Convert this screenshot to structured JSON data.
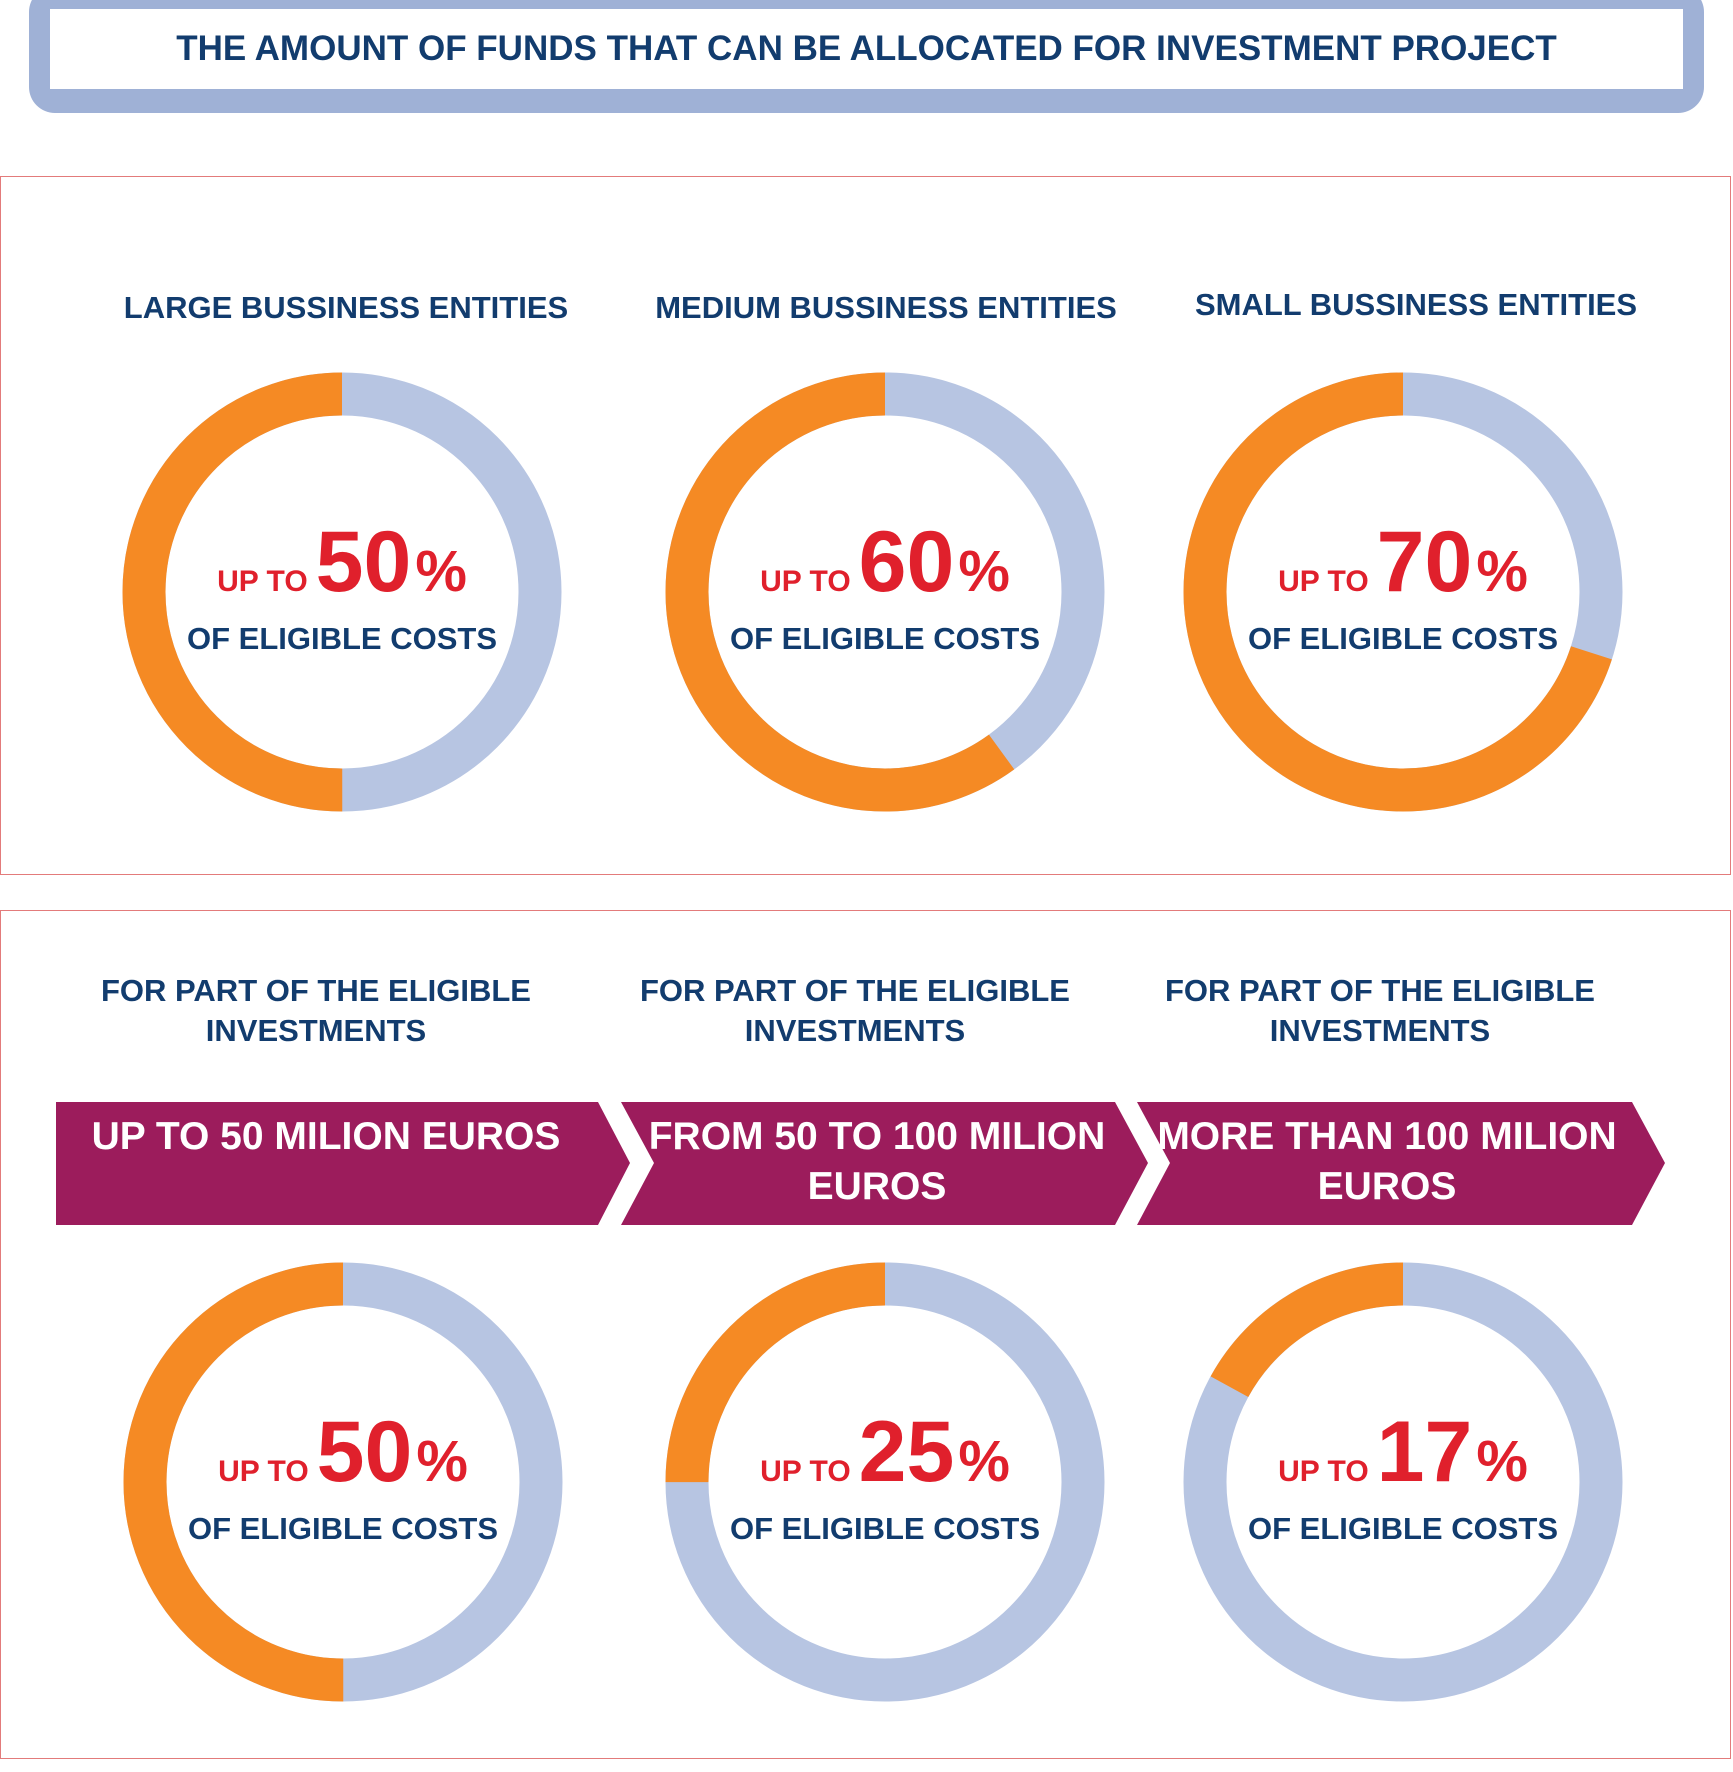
{
  "header": {
    "title": "THE AMOUNT OF FUNDS THAT CAN BE ALLOCATED FOR INVESTMENT PROJECT"
  },
  "colors": {
    "accent": "#f58a24",
    "remainder": "#b7c5e2",
    "navy": "#123c6e",
    "red": "#e0202c",
    "band": "#9c1c5c"
  },
  "chart_data": [
    {
      "type": "pie",
      "entities": [
        {
          "label": "LARGE BUSSINESS ENTITIES",
          "prefix": "UP TO",
          "value": 50,
          "number": "50",
          "unit": "%",
          "caption": "OF ELIGIBLE COSTS"
        },
        {
          "label": "MEDIUM BUSSINESS ENTITIES",
          "prefix": "UP TO",
          "value": 60,
          "number": "60",
          "unit": "%",
          "caption": "OF ELIGIBLE COSTS"
        },
        {
          "label": "SMALL BUSSINESS ENTITIES",
          "prefix": "UP TO",
          "value": 70,
          "number": "70",
          "unit": "%",
          "caption": "OF ELIGIBLE COSTS"
        }
      ]
    },
    {
      "type": "pie",
      "tiers": [
        {
          "label": "FOR PART OF THE ELIGIBLE INVESTMENTS",
          "band": "UP TO 50 MILION EUROS",
          "prefix": "UP TO",
          "value": 50,
          "number": "50",
          "unit": "%",
          "caption": "OF ELIGIBLE COSTS"
        },
        {
          "label": "FOR PART OF THE ELIGIBLE INVESTMENTS",
          "band": "FROM 50  TO 100 MILION EUROS",
          "prefix": "UP TO",
          "value": 25,
          "number": "25",
          "unit": "%",
          "caption": "OF ELIGIBLE COSTS"
        },
        {
          "label": "FOR PART OF THE ELIGIBLE INVESTMENTS",
          "band": "MORE THAN   100 MILION EUROS",
          "prefix": "UP TO",
          "value": 17,
          "number": "17",
          "unit": "%",
          "caption": "OF ELIGIBLE COSTS"
        }
      ]
    }
  ]
}
